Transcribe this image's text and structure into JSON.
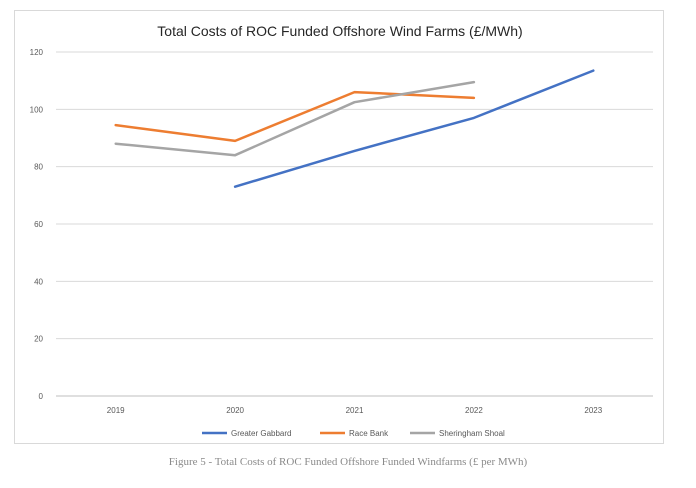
{
  "chart_data": {
    "type": "line",
    "title": "Total Costs of ROC Funded Offshore Wind Farms (£/MWh)",
    "categories": [
      "2019",
      "2020",
      "2021",
      "2022",
      "2023"
    ],
    "ylim": [
      0,
      120
    ],
    "yticks": [
      0,
      20,
      40,
      60,
      80,
      100,
      120
    ],
    "grid": true,
    "legend_position": "bottom",
    "series": [
      {
        "name": "Greater Gabbard",
        "color": "#4472c4",
        "values": [
          null,
          73,
          85.5,
          97,
          113.5
        ]
      },
      {
        "name": "Race Bank",
        "color": "#ed7d31",
        "values": [
          94.5,
          89,
          106,
          104,
          null
        ]
      },
      {
        "name": "Sheringham Shoal",
        "color": "#a5a5a5",
        "values": [
          88,
          84,
          102.5,
          109.5,
          null
        ]
      }
    ]
  },
  "caption": "Figure 5 - Total Costs of ROC Funded Offshore Funded Windfarms (£ per MWh)"
}
